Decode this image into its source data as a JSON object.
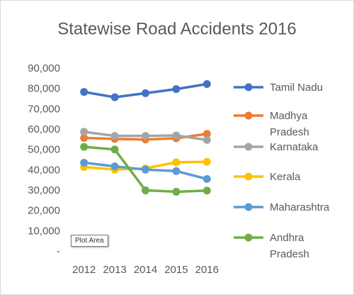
{
  "chart_data": {
    "type": "line",
    "title": "Statewise Road Accidents 2016",
    "categories": [
      "2012",
      "2013",
      "2014",
      "2015",
      "2016"
    ],
    "series": [
      {
        "name": "Tamil Nadu",
        "color": "#4472c4",
        "values": [
          78600,
          76000,
          78000,
          80000,
          82500
        ]
      },
      {
        "name": "Madhya Pradesh",
        "color": "#ed7d31",
        "values": [
          56000,
          55500,
          55200,
          55800,
          58000
        ]
      },
      {
        "name": "Karnataka",
        "color": "#a5a5a5",
        "values": [
          59000,
          57000,
          57000,
          57200,
          55000
        ]
      },
      {
        "name": "Kerala",
        "color": "#ffc000",
        "values": [
          41700,
          40400,
          41000,
          44000,
          44200
        ]
      },
      {
        "name": "Maharashtra",
        "color": "#5b9bd5",
        "values": [
          43800,
          42000,
          40400,
          39700,
          35800
        ]
      },
      {
        "name": "Andhra Pradesh",
        "color": "#70ad47",
        "values": [
          51600,
          50300,
          30200,
          29500,
          30100
        ]
      }
    ],
    "ylim": [
      0,
      90000
    ],
    "yticks": [
      {
        "value": 0,
        "label": "-"
      },
      {
        "value": 10000,
        "label": "10,000"
      },
      {
        "value": 20000,
        "label": "20,000"
      },
      {
        "value": 30000,
        "label": "30,000"
      },
      {
        "value": 40000,
        "label": "40,000"
      },
      {
        "value": 50000,
        "label": "50,000"
      },
      {
        "value": 60000,
        "label": "60,000"
      },
      {
        "value": 70000,
        "label": "70,000"
      },
      {
        "value": 80000,
        "label": "80,000"
      },
      {
        "value": 90000,
        "label": "90,000"
      }
    ],
    "grid": false,
    "legend": "right",
    "tooltip": "Plot Area"
  }
}
